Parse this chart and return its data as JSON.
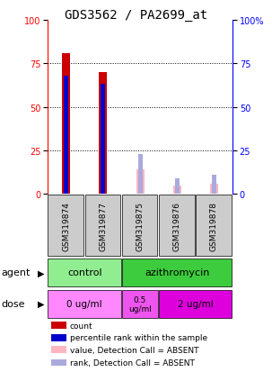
{
  "title": "GDS3562 / PA2699_at",
  "samples": [
    "GSM319874",
    "GSM319877",
    "GSM319875",
    "GSM319876",
    "GSM319878"
  ],
  "red_bars": [
    81,
    70,
    0,
    0,
    0
  ],
  "blue_bars": [
    68,
    63,
    0,
    0,
    0
  ],
  "pink_bars": [
    0,
    0,
    14,
    5,
    6
  ],
  "light_blue_bars": [
    0,
    0,
    23,
    9,
    11
  ],
  "ylim": [
    0,
    100
  ],
  "yticks": [
    0,
    25,
    50,
    75,
    100
  ],
  "sample_bg_color": "#CCCCCC",
  "agent_colors": [
    "#90EE90",
    "#3DCC3D"
  ],
  "dose_colors": [
    "#FF88FF",
    "#EE55EE",
    "#DD00DD"
  ],
  "legend_items": [
    {
      "color": "#CC0000",
      "label": "count"
    },
    {
      "color": "#0000CC",
      "label": "percentile rank within the sample"
    },
    {
      "color": "#FFB6C1",
      "label": "value, Detection Call = ABSENT"
    },
    {
      "color": "#AAAADD",
      "label": "rank, Detection Call = ABSENT"
    }
  ],
  "title_fontsize": 10,
  "tick_fontsize": 7,
  "sample_fontsize": 6.5,
  "row_fontsize": 8,
  "legend_fontsize": 6.5
}
